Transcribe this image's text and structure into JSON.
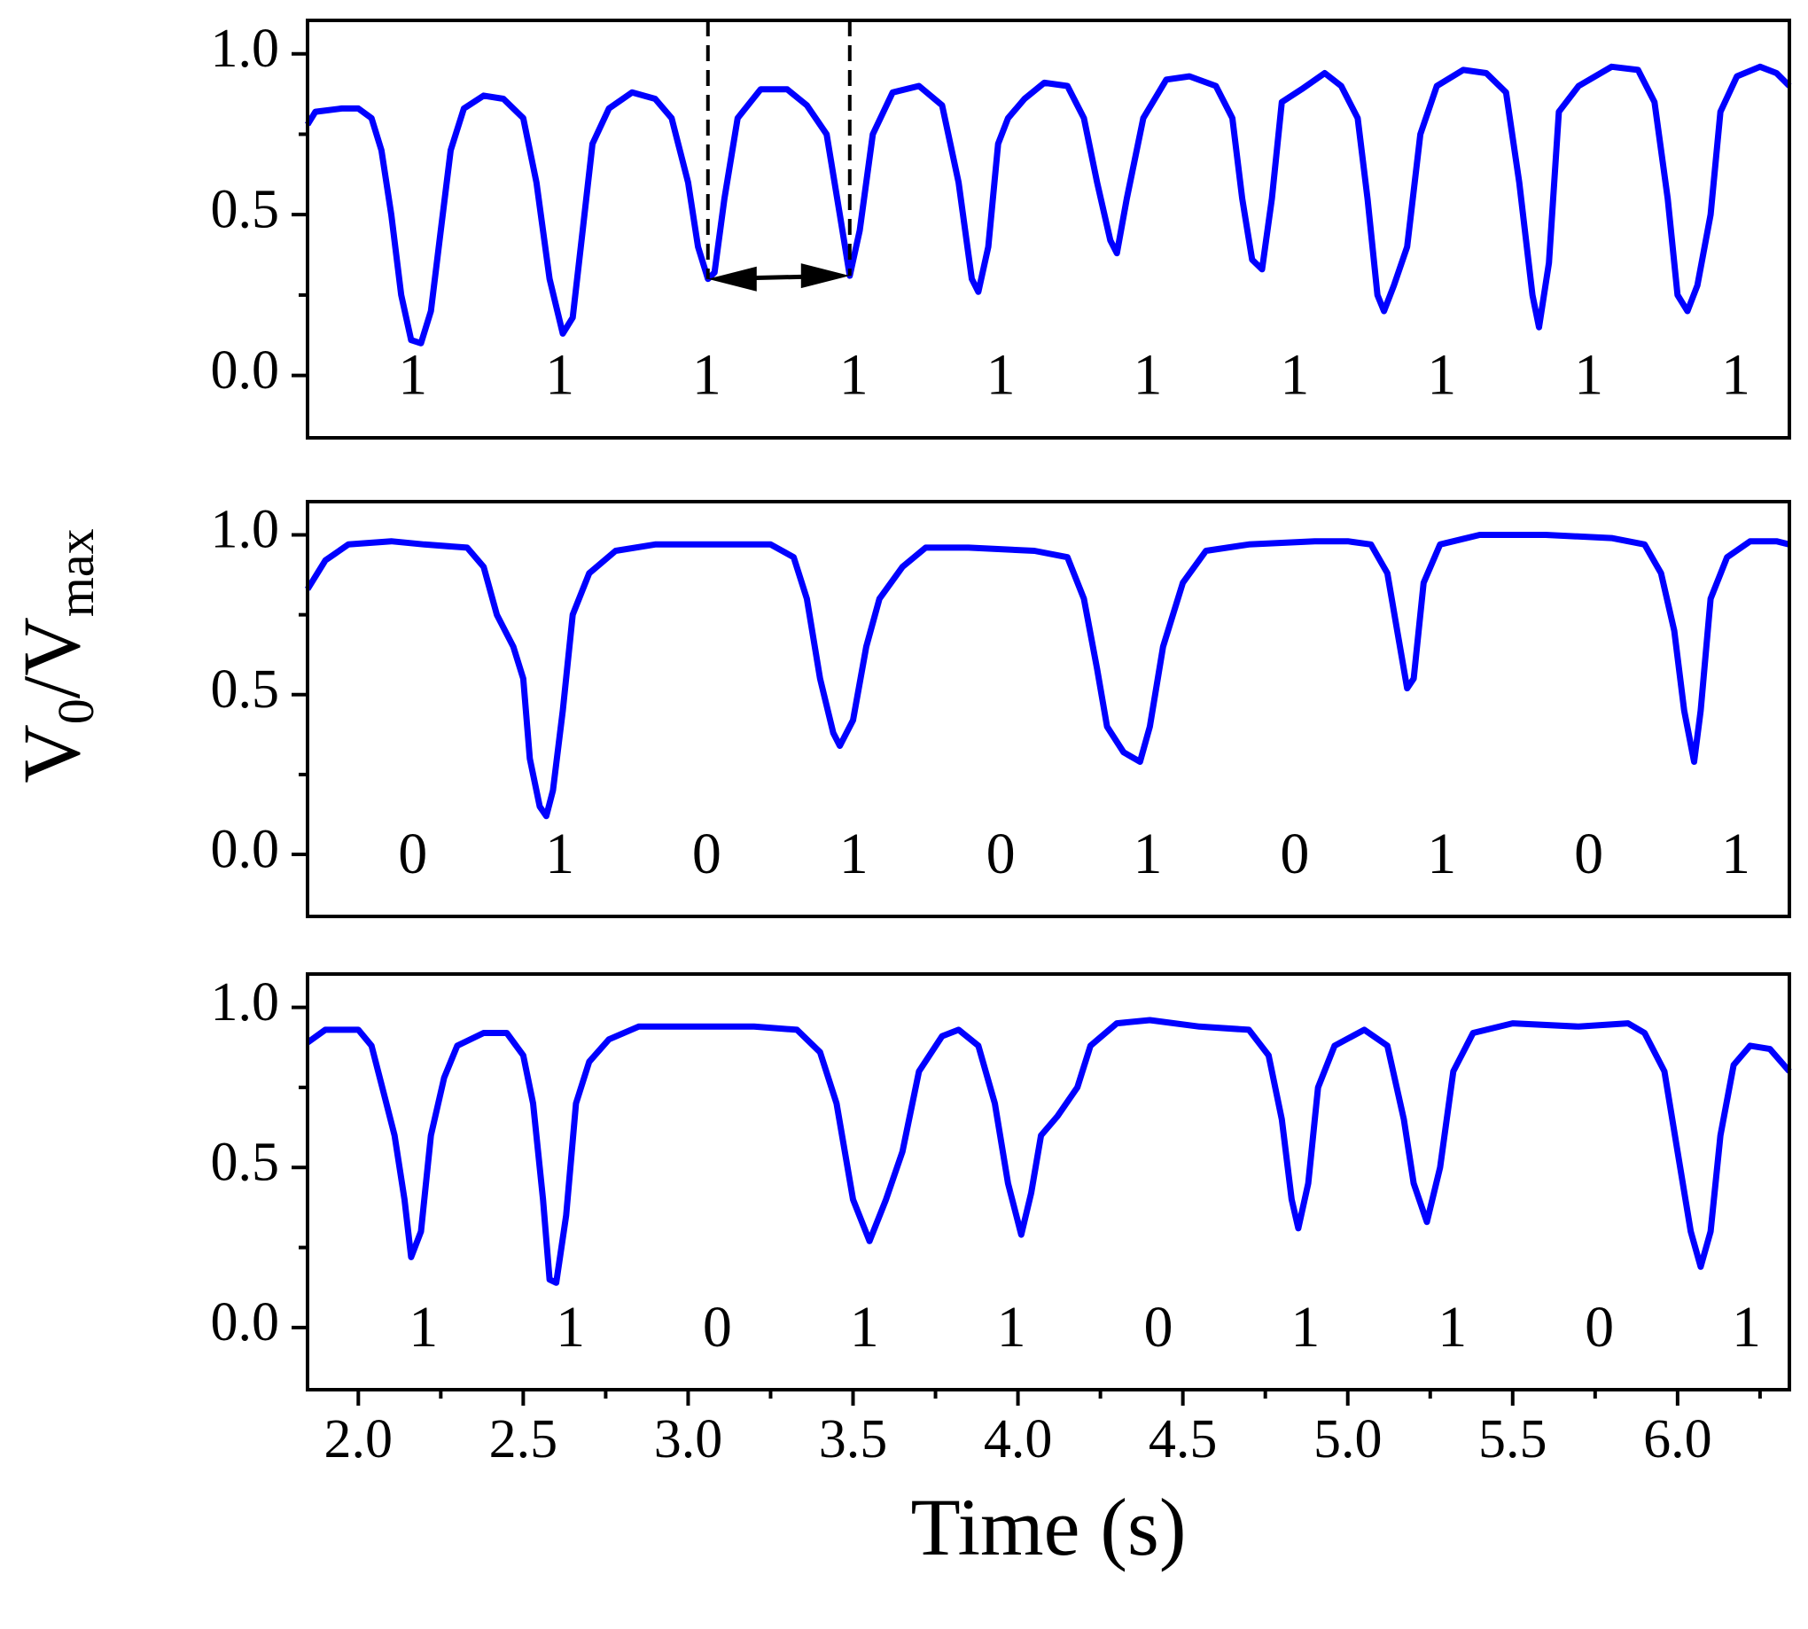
{
  "chart_data": [
    {
      "type": "line",
      "color": "#0000ff",
      "xlim": [
        1.846,
        6.339
      ],
      "ylim": [
        -0.194,
        1.104
      ],
      "yticks": [
        {
          "value": 0,
          "label": "0.0"
        },
        0.5,
        {
          "value": 1,
          "label": "1.0"
        }
      ],
      "x": [
        1.846,
        1.87,
        1.95,
        2.0,
        2.04,
        2.07,
        2.1,
        2.13,
        2.16,
        2.19,
        2.22,
        2.25,
        2.28,
        2.32,
        2.38,
        2.44,
        2.5,
        2.54,
        2.58,
        2.62,
        2.65,
        2.68,
        2.71,
        2.76,
        2.83,
        2.9,
        2.95,
        3.0,
        3.03,
        3.06,
        3.08,
        3.11,
        3.15,
        3.22,
        3.3,
        3.36,
        3.42,
        3.46,
        3.49,
        3.52,
        3.56,
        3.62,
        3.7,
        3.77,
        3.82,
        3.86,
        3.88,
        3.91,
        3.94,
        3.97,
        4.02,
        4.08,
        4.15,
        4.2,
        4.24,
        4.28,
        4.3,
        4.33,
        4.38,
        4.45,
        4.52,
        4.6,
        4.65,
        4.68,
        4.71,
        4.74,
        4.77,
        4.8,
        4.86,
        4.93,
        4.98,
        5.03,
        5.06,
        5.09,
        5.11,
        5.14,
        5.18,
        5.22,
        5.27,
        5.35,
        5.42,
        5.48,
        5.52,
        5.56,
        5.58,
        5.61,
        5.64,
        5.7,
        5.8,
        5.88,
        5.93,
        5.97,
        6.0,
        6.03,
        6.06,
        6.1,
        6.13,
        6.18,
        6.25,
        6.3,
        6.339
      ],
      "values": [
        0.78,
        0.82,
        0.83,
        0.83,
        0.8,
        0.7,
        0.5,
        0.25,
        0.11,
        0.1,
        0.2,
        0.45,
        0.7,
        0.83,
        0.87,
        0.86,
        0.8,
        0.6,
        0.3,
        0.13,
        0.18,
        0.45,
        0.72,
        0.83,
        0.88,
        0.86,
        0.8,
        0.6,
        0.4,
        0.3,
        0.32,
        0.55,
        0.8,
        0.89,
        0.89,
        0.84,
        0.75,
        0.5,
        0.31,
        0.45,
        0.75,
        0.88,
        0.9,
        0.84,
        0.6,
        0.3,
        0.26,
        0.4,
        0.72,
        0.8,
        0.86,
        0.91,
        0.9,
        0.8,
        0.6,
        0.42,
        0.38,
        0.55,
        0.8,
        0.92,
        0.93,
        0.9,
        0.8,
        0.55,
        0.36,
        0.33,
        0.55,
        0.85,
        0.89,
        0.94,
        0.9,
        0.8,
        0.55,
        0.25,
        0.2,
        0.28,
        0.4,
        0.75,
        0.9,
        0.95,
        0.94,
        0.88,
        0.6,
        0.25,
        0.15,
        0.35,
        0.82,
        0.9,
        0.96,
        0.95,
        0.85,
        0.55,
        0.25,
        0.2,
        0.28,
        0.5,
        0.82,
        0.93,
        0.96,
        0.94,
        0.9
      ],
      "bit_labels": [
        "1",
        "1",
        "1",
        "1",
        "1",
        "1",
        "1",
        "1",
        "1",
        "1"
      ],
      "period_marker": {
        "x": [
          3.06,
          3.49
        ],
        "y": [
          0.3,
          0.31
        ]
      }
    },
    {
      "type": "line",
      "color": "#0000ff",
      "xlim": [
        1.846,
        6.339
      ],
      "ylim": [
        -0.194,
        1.104
      ],
      "yticks": [
        {
          "value": 0,
          "label": "0.0"
        },
        0.5,
        {
          "value": 1,
          "label": "1.0"
        }
      ],
      "ylabel": [
        "V",
        "0",
        "/V",
        "max"
      ],
      "x": [
        1.846,
        1.9,
        1.97,
        2.1,
        2.2,
        2.33,
        2.38,
        2.42,
        2.47,
        2.5,
        2.52,
        2.55,
        2.57,
        2.59,
        2.62,
        2.65,
        2.7,
        2.78,
        2.9,
        3.1,
        3.25,
        3.32,
        3.36,
        3.4,
        3.44,
        3.46,
        3.5,
        3.54,
        3.58,
        3.65,
        3.72,
        3.85,
        4.05,
        4.15,
        4.2,
        4.24,
        4.27,
        4.32,
        4.37,
        4.4,
        4.44,
        4.5,
        4.57,
        4.7,
        4.9,
        5.0,
        5.07,
        5.12,
        5.15,
        5.18,
        5.2,
        5.23,
        5.28,
        5.4,
        5.6,
        5.8,
        5.9,
        5.95,
        5.99,
        6.02,
        6.05,
        6.07,
        6.1,
        6.15,
        6.22,
        6.3,
        6.339
      ],
      "values": [
        0.83,
        0.92,
        0.97,
        0.98,
        0.97,
        0.96,
        0.9,
        0.75,
        0.65,
        0.55,
        0.3,
        0.15,
        0.12,
        0.2,
        0.45,
        0.75,
        0.88,
        0.95,
        0.97,
        0.97,
        0.97,
        0.93,
        0.8,
        0.55,
        0.38,
        0.34,
        0.42,
        0.65,
        0.8,
        0.9,
        0.96,
        0.96,
        0.95,
        0.93,
        0.8,
        0.58,
        0.4,
        0.32,
        0.29,
        0.4,
        0.65,
        0.85,
        0.95,
        0.97,
        0.98,
        0.98,
        0.97,
        0.88,
        0.7,
        0.52,
        0.55,
        0.85,
        0.97,
        1.0,
        1.0,
        0.99,
        0.97,
        0.88,
        0.7,
        0.45,
        0.29,
        0.45,
        0.8,
        0.93,
        0.98,
        0.98,
        0.97
      ],
      "bit_labels": [
        "0",
        "1",
        "0",
        "1",
        "0",
        "1",
        "0",
        "1",
        "0",
        "1"
      ]
    },
    {
      "type": "line",
      "color": "#0000ff",
      "xlim": [
        1.846,
        6.339
      ],
      "ylim": [
        -0.194,
        1.104
      ],
      "yticks": [
        {
          "value": 0,
          "label": "0.0"
        },
        0.5,
        {
          "value": 1,
          "label": "1.0"
        }
      ],
      "xticks": [
        {
          "value": 2,
          "label": "2.0"
        },
        2.5,
        {
          "value": 3,
          "label": "3.0"
        },
        3.5,
        {
          "value": 4,
          "label": "4.0"
        },
        4.5,
        {
          "value": 5,
          "label": "5.0"
        },
        5.5,
        {
          "value": 6,
          "label": "6.0"
        }
      ],
      "xlabel": "Time (s)",
      "x": [
        1.846,
        1.9,
        2.0,
        2.04,
        2.08,
        2.11,
        2.14,
        2.16,
        2.19,
        2.22,
        2.26,
        2.3,
        2.38,
        2.45,
        2.5,
        2.53,
        2.56,
        2.58,
        2.6,
        2.63,
        2.66,
        2.7,
        2.76,
        2.85,
        3.0,
        3.2,
        3.33,
        3.4,
        3.45,
        3.5,
        3.55,
        3.6,
        3.65,
        3.7,
        3.77,
        3.82,
        3.88,
        3.93,
        3.97,
        4.01,
        4.04,
        4.07,
        4.12,
        4.18,
        4.22,
        4.3,
        4.4,
        4.55,
        4.7,
        4.76,
        4.8,
        4.83,
        4.85,
        4.88,
        4.91,
        4.96,
        5.05,
        5.12,
        5.17,
        5.2,
        5.24,
        5.28,
        5.32,
        5.38,
        5.5,
        5.7,
        5.85,
        5.9,
        5.96,
        6.0,
        6.04,
        6.07,
        6.1,
        6.13,
        6.17,
        6.22,
        6.28,
        6.339
      ],
      "values": [
        0.89,
        0.93,
        0.93,
        0.88,
        0.72,
        0.6,
        0.4,
        0.22,
        0.3,
        0.6,
        0.78,
        0.88,
        0.92,
        0.92,
        0.85,
        0.7,
        0.4,
        0.15,
        0.14,
        0.35,
        0.7,
        0.83,
        0.9,
        0.94,
        0.94,
        0.94,
        0.93,
        0.86,
        0.7,
        0.4,
        0.27,
        0.4,
        0.55,
        0.8,
        0.91,
        0.93,
        0.88,
        0.7,
        0.45,
        0.29,
        0.42,
        0.6,
        0.66,
        0.75,
        0.88,
        0.95,
        0.96,
        0.94,
        0.93,
        0.85,
        0.65,
        0.4,
        0.31,
        0.45,
        0.75,
        0.88,
        0.93,
        0.88,
        0.65,
        0.45,
        0.33,
        0.5,
        0.8,
        0.92,
        0.95,
        0.94,
        0.95,
        0.92,
        0.8,
        0.55,
        0.3,
        0.19,
        0.3,
        0.6,
        0.82,
        0.88,
        0.87,
        0.8
      ],
      "bit_labels": [
        "1",
        "1",
        "0",
        "1",
        "1",
        "0",
        "1",
        "1",
        "0",
        "1"
      ]
    }
  ]
}
